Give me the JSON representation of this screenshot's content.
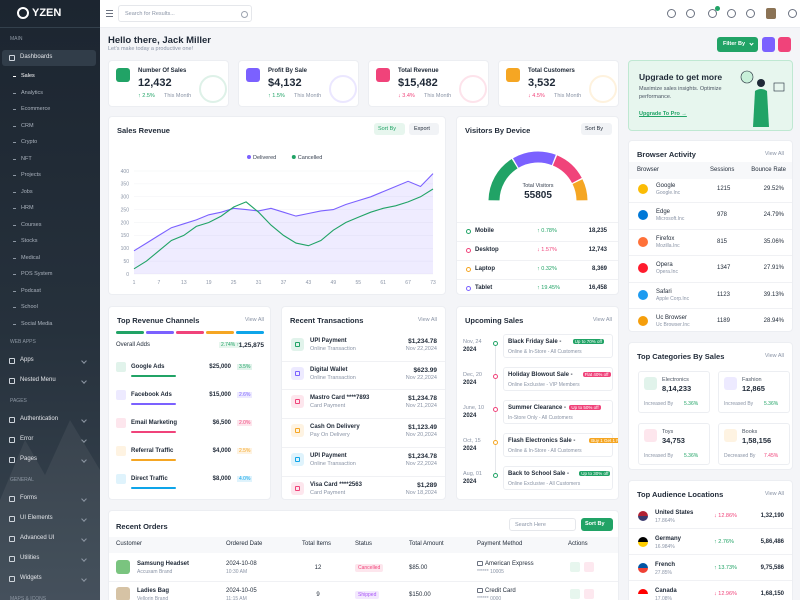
{
  "sidebar": {
    "logo": "YZEN",
    "groups": [
      {
        "heading": "MAIN",
        "items": [
          {
            "label": "Dashboards",
            "submenu": [
              "Sales",
              "Analytics",
              "Ecommerce",
              "CRM",
              "Crypto",
              "NFT",
              "Projects",
              "Jobs",
              "HRM",
              "Courses",
              "Stocks",
              "Medical",
              "POS System",
              "Podcast",
              "School",
              "Social Media"
            ]
          }
        ]
      },
      {
        "heading": "WEB APPS",
        "items": [
          {
            "label": "Apps"
          },
          {
            "label": "Nested Menu"
          }
        ]
      },
      {
        "heading": "PAGES",
        "items": [
          {
            "label": "Authentication"
          },
          {
            "label": "Error"
          },
          {
            "label": "Pages"
          }
        ]
      },
      {
        "heading": "GENERAL",
        "items": [
          {
            "label": "Forms"
          },
          {
            "label": "UI Elements"
          },
          {
            "label": "Advanced UI"
          },
          {
            "label": "Utilities"
          },
          {
            "label": "Widgets"
          }
        ]
      },
      {
        "heading": "MAPS & ICONS",
        "items": []
      }
    ]
  },
  "header": {
    "search_placeholder": "Search for Results..."
  },
  "greeting": {
    "title": "Hello there, Jack Miller",
    "subtitle": "Let's make today a productive one!",
    "filter": "Filter By"
  },
  "stats": [
    {
      "label": "Number Of Sales",
      "value": "12,432",
      "change": "↑ 2.5%",
      "trend": "up",
      "period": "This Month",
      "color": "#21a366"
    },
    {
      "label": "Profit By Sale",
      "value": "$4,132",
      "change": "↑ 1.5%",
      "trend": "up",
      "period": "This Month",
      "color": "#7b61ff"
    },
    {
      "label": "Total Revenue",
      "value": "$15,482",
      "change": "↓ 3.4%",
      "trend": "down",
      "period": "This Month",
      "color": "#f0437a"
    },
    {
      "label": "Total Customers",
      "value": "3,532",
      "change": "↓ 4.5%",
      "trend": "down",
      "period": "This Month",
      "color": "#f5a623"
    }
  ],
  "upgrade": {
    "title": "Upgrade to get more",
    "text": "Maximize sales insights. Optimize performance.",
    "link": "Upgrade To Pro →"
  },
  "sales_revenue": {
    "title": "Sales Revenue",
    "sort": "Sort By",
    "export": "Export",
    "x": [
      1,
      4,
      7,
      10,
      13,
      16,
      19,
      22,
      25,
      28,
      31,
      34,
      37,
      40,
      43,
      46,
      49,
      52,
      55,
      58,
      61,
      64,
      67,
      70,
      73
    ],
    "series": [
      {
        "name": "Delivered",
        "color": "#7b61ff",
        "area": true,
        "values": [
          90,
          120,
          150,
          180,
          195,
          210,
          230,
          240,
          255,
          250,
          245,
          255,
          240,
          225,
          235,
          245,
          250,
          270,
          285,
          300,
          320,
          340,
          360,
          340,
          390
        ]
      },
      {
        "name": "Cancelled",
        "color": "#21a366",
        "area": false,
        "values": [
          20,
          50,
          90,
          130,
          150,
          185,
          200,
          225,
          260,
          280,
          240,
          190,
          150,
          120,
          110,
          130,
          170,
          200,
          220,
          240,
          255,
          265,
          280,
          300,
          330
        ]
      }
    ],
    "xlim": [
      1,
      73
    ],
    "xticks": [
      1,
      7,
      13,
      19,
      25,
      31,
      37,
      43,
      49,
      55,
      61,
      67,
      73
    ],
    "ylim": [
      0,
      400
    ],
    "yticks": [
      0,
      50,
      100,
      150,
      200,
      250,
      300,
      350,
      400
    ],
    "grid": true
  },
  "visitors": {
    "title": "Visitors By Device",
    "sort": "Sort By",
    "total_label": "Total Visitors",
    "total": 55805,
    "devices": [
      {
        "name": "Mobile",
        "change": "↑ 0.78%",
        "trend": "up",
        "value": 18235,
        "value_label": "18,235",
        "color": "#21a366"
      },
      {
        "name": "Desktop",
        "change": "↓ 1.57%",
        "trend": "down",
        "value": 12743,
        "value_label": "12,743",
        "color": "#f0437a"
      },
      {
        "name": "Laptop",
        "change": "↑ 0.32%",
        "trend": "up",
        "value": 8369,
        "value_label": "8,369",
        "color": "#f5a623"
      },
      {
        "name": "Tablet",
        "change": "↑ 19.45%",
        "trend": "up",
        "value": 16458,
        "value_label": "16,458",
        "color": "#7b61ff"
      }
    ],
    "gauge_order": [
      0,
      3,
      1,
      2
    ]
  },
  "browser_activity": {
    "title": "Browser Activity",
    "view_all": "View All",
    "columns": [
      "Browser",
      "Sessions",
      "Bounce Rate"
    ],
    "rows": [
      {
        "name": "Google",
        "company": "Google.Inc",
        "sessions": "1215",
        "bounce": "29.52%"
      },
      {
        "name": "Edge",
        "company": "Microsoft.Inc",
        "sessions": "978",
        "bounce": "24.79%"
      },
      {
        "name": "Firefox",
        "company": "Mozilla.Inc",
        "sessions": "815",
        "bounce": "35.06%"
      },
      {
        "name": "Opera",
        "company": "Opera.Inc",
        "sessions": "1347",
        "bounce": "27.91%"
      },
      {
        "name": "Safari",
        "company": "Apple Corp.Inc",
        "sessions": "1123",
        "bounce": "39.13%"
      },
      {
        "name": "Uc Browser",
        "company": "Uc Browser.Inc",
        "sessions": "1189",
        "bounce": "28.94%"
      }
    ]
  },
  "revenue_channels": {
    "title": "Top Revenue Channels",
    "view_all": "View All",
    "overall_label": "Overall Adds",
    "overall_change": "2.74% ↑",
    "overall_value": "1,25,875",
    "channels": [
      {
        "name": "Google Ads",
        "amount": "$25,000",
        "pct": "3.5%",
        "color": "#21a366"
      },
      {
        "name": "Facebook Ads",
        "amount": "$15,000",
        "pct": "2.6%",
        "color": "#7b61ff"
      },
      {
        "name": "Email Marketing",
        "amount": "$6,500",
        "pct": "2.0%",
        "color": "#f0437a"
      },
      {
        "name": "Referral Traffic",
        "amount": "$4,000",
        "pct": "2.5%",
        "color": "#f5a623"
      },
      {
        "name": "Direct Traffic",
        "amount": "$8,000",
        "pct": "4.0%",
        "color": "#0ea5e9"
      }
    ]
  },
  "transactions": {
    "title": "Recent Transactions",
    "view_all": "View All",
    "rows": [
      {
        "name": "UPI Payment",
        "type": "Online Transaction",
        "amount": "$1,234.78",
        "date": "Nov 22,2024",
        "color": "#21a366"
      },
      {
        "name": "Digital Wallet",
        "type": "Online Transaction",
        "amount": "$623.99",
        "date": "Nov 22,2024",
        "color": "#7b61ff"
      },
      {
        "name": "Mastro Card ****7893",
        "type": "Card Payment",
        "amount": "$1,234.78",
        "date": "Nov 21,2024",
        "color": "#f0437a"
      },
      {
        "name": "Cash On Delivery",
        "type": "Pay On Delivery",
        "amount": "$1,123.49",
        "date": "Nov 20,2024",
        "color": "#f5a623"
      },
      {
        "name": "UPI Payment",
        "type": "Online Transaction",
        "amount": "$1,234.78",
        "date": "Nov 22,2024",
        "color": "#0ea5e9"
      },
      {
        "name": "Visa Card ****2563",
        "type": "Card Payment",
        "amount": "$1,289",
        "date": "Nov 18,2024",
        "color": "#f0437a"
      }
    ]
  },
  "upcoming_sales": {
    "title": "Upcoming Sales",
    "view_all": "View All",
    "rows": [
      {
        "date": "Nov, 24",
        "year": "2024",
        "title": "Black Friday Sale -",
        "badge": "Up to 70% off",
        "audience": "Online & In-Store - All Customers",
        "color": "#21a366"
      },
      {
        "date": "Dec, 20",
        "year": "2024",
        "title": "Holiday Blowout Sale -",
        "badge": "Flat 40% off",
        "audience": "Online Exclusive - VIP Members",
        "color": "#f0437a"
      },
      {
        "date": "June, 10",
        "year": "2024",
        "title": "Summer Clearance -",
        "badge": "Up to 50% off",
        "audience": "In-Store Only - All Customers",
        "color": "#f0437a"
      },
      {
        "date": "Oct, 15",
        "year": "2024",
        "title": "Flash Electronics Sale -",
        "badge": "Buy 1 Get 1 Free",
        "audience": "Online & In-Store - All Customers",
        "color": "#f5a623"
      },
      {
        "date": "Aug, 01",
        "year": "2024",
        "title": "Back to School Sale -",
        "badge": "Up to 30% off",
        "audience": "Online Exclusive - All Customers",
        "color": "#21a366"
      }
    ]
  },
  "top_categories": {
    "title": "Top Categories By Sales",
    "view_all": "View All",
    "items": [
      {
        "name": "Electronics",
        "value": "8,14,233",
        "status": "Increased By",
        "pct": "5.36%",
        "trend": "up",
        "color": "#21a366"
      },
      {
        "name": "Fashion",
        "value": "12,865",
        "status": "Increased By",
        "pct": "5.36%",
        "trend": "up",
        "color": "#7b61ff"
      },
      {
        "name": "Toys",
        "value": "34,753",
        "status": "Increased By",
        "pct": "5.36%",
        "trend": "up",
        "color": "#f0437a"
      },
      {
        "name": "Books",
        "value": "1,58,156",
        "status": "Decreased By",
        "pct": "7.45%",
        "trend": "down",
        "color": "#f5a623"
      }
    ]
  },
  "audience": {
    "title": "Top Audience Locations",
    "view_all": "View All",
    "rows": [
      {
        "country": "United States",
        "share": "17.864%",
        "change": "↓ 12.86%",
        "trend": "down",
        "value": "1,32,190"
      },
      {
        "country": "Germany",
        "share": "16.984%",
        "change": "↑ 2.76%",
        "trend": "up",
        "value": "5,86,486"
      },
      {
        "country": "French",
        "share": "27.85%",
        "change": "↑ 13.73%",
        "trend": "up",
        "value": "9,75,586"
      },
      {
        "country": "Canada",
        "share": "17.08%",
        "change": "↓ 12.96%",
        "trend": "down",
        "value": "1,68,150"
      }
    ]
  },
  "orders": {
    "title": "Recent Orders",
    "search_placeholder": "Search Here",
    "sort": "Sort By",
    "columns": [
      "Customer",
      "Ordered Date",
      "Total Items",
      "Status",
      "Total Amount",
      "Payment Method",
      "Actions"
    ],
    "rows": [
      {
        "product": "Samsung Headset",
        "brand": "Accusam Brand",
        "date": "2024-10-08",
        "time": "10:30 AM",
        "items": "12",
        "status": "Cancelled",
        "status_color": "#f0437a",
        "amount": "$85.00",
        "payment": "American Express",
        "card": "****** 10005"
      },
      {
        "product": "Ladies Bag",
        "brand": "Vellorin Brand",
        "date": "2024-10-05",
        "time": "11:15 AM",
        "items": "9",
        "status": "Shipped",
        "status_color": "#a855f7",
        "amount": "$150.00",
        "payment": "Credit Card",
        "card": "****** 0000"
      }
    ]
  }
}
